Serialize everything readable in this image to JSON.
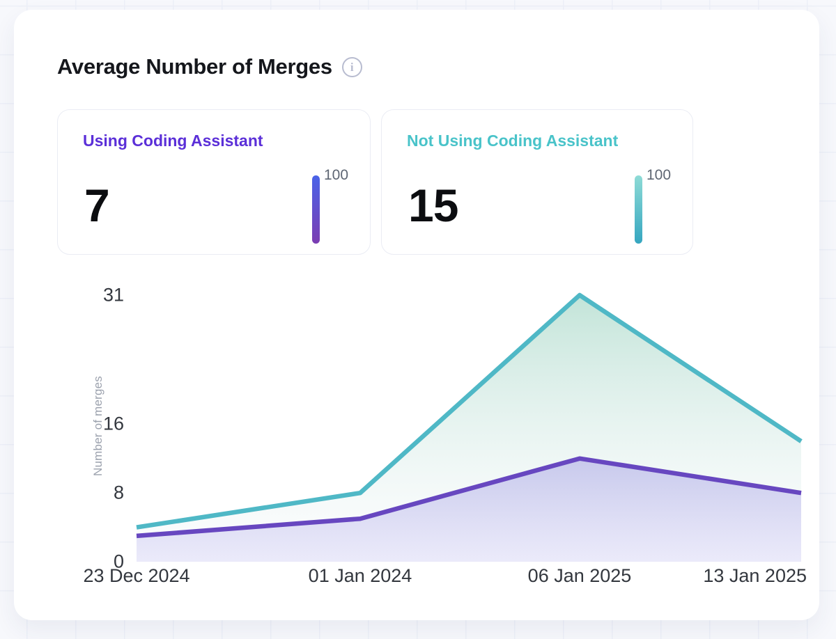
{
  "header": {
    "title": "Average Number of Merges"
  },
  "stat_cards": [
    {
      "label": "Using Coding Assistant",
      "value": "7",
      "scale_max": "100",
      "accent_color": "#5b2fd8",
      "bar_gradient_top": "#4a63e8",
      "bar_gradient_bottom": "#7b3db2"
    },
    {
      "label": "Not Using Coding Assistant",
      "value": "15",
      "scale_max": "100",
      "accent_color": "#49c3c9",
      "bar_gradient_top": "#8edbd6",
      "bar_gradient_bottom": "#35a6c0"
    }
  ],
  "chart_data": {
    "type": "area",
    "title": "Average Number of Merges",
    "x": [
      "23 Dec 2024",
      "01 Jan 2024",
      "06 Jan 2025",
      "13 Jan 2025"
    ],
    "series": [
      {
        "name": "Using Coding Assistant",
        "values": [
          3,
          5,
          12,
          8
        ],
        "line_color": "#6747c0",
        "fill_top": "rgba(110,95,215,0.30)",
        "fill_bottom": "rgba(130,120,225,0.14)"
      },
      {
        "name": "Not Using Coding Assistant",
        "values": [
          4,
          8,
          31,
          14
        ],
        "line_color": "#4fb8c6",
        "fill_top": "rgba(111,191,163,0.42)",
        "fill_bottom": "rgba(238,242,248,0.15)"
      }
    ],
    "ylabel": "Number of merges",
    "yticks": [
      0,
      8,
      16,
      31
    ],
    "ylim": [
      0,
      31
    ],
    "grid": false,
    "legend_position": "none"
  }
}
